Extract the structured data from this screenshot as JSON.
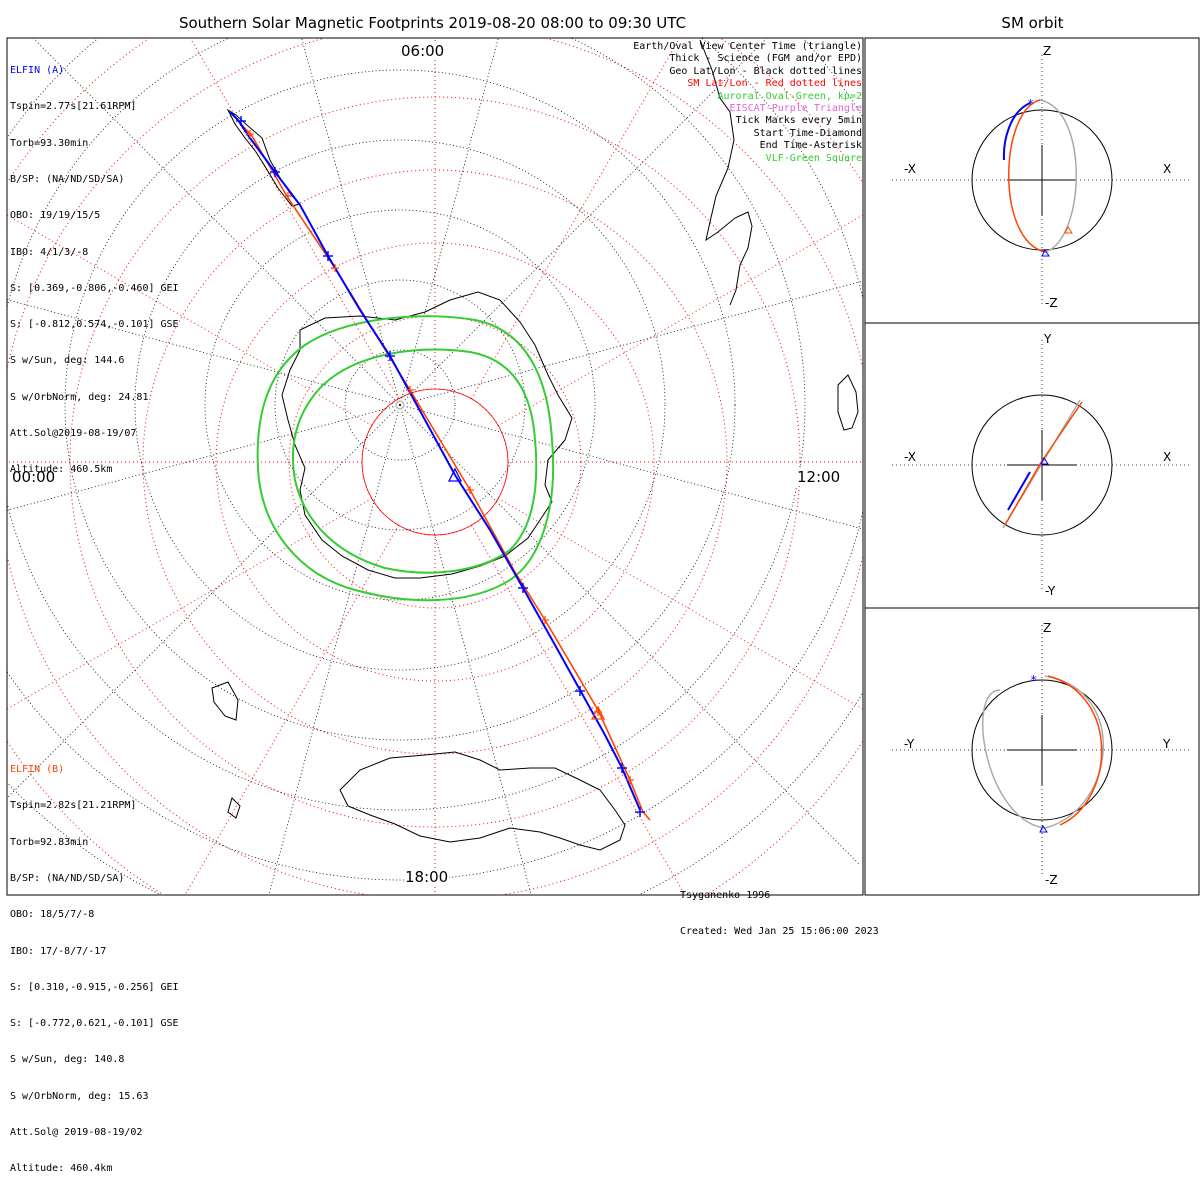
{
  "header": {
    "title": "Southern Solar Magnetic Footprints 2019-08-20 08:00 to 09:30 UTC",
    "sm_title": "SM orbit"
  },
  "map": {
    "mlt_labels": {
      "top": "06:00",
      "left": "00:00",
      "right": "12:00",
      "bottom": "18:00"
    }
  },
  "elfin_a": {
    "name": "ELFIN (A)",
    "lines": [
      "Tspin=2.77s[21.61RPM]",
      "Torb=93.30min",
      "B/SP: (NA/ND/SD/SA)",
      "OBO: 19/19/15/5",
      "IBO: 4/1/3/-8",
      "S: [0.369,-0.806,-0.460] GEI",
      "S: [-0.812,0.574,-0.101] GSE",
      "S w/Sun, deg: 144.6",
      "S w/OrbNorm, deg: 24.81",
      "Att.Sol@2019-08-19/07",
      "Altitude: 460.5km"
    ],
    "color": "#0000ff"
  },
  "elfin_b": {
    "name": "ELFIN (B)",
    "lines": [
      "Tspin=2.82s[21.21RPM]",
      "Torb=92.83min",
      "B/SP: (NA/ND/SD/SA)",
      "OBO: 18/5/7/-8",
      "IBO: 17/-8/7/-17",
      "S: [0.310,-0.915,-0.256] GEI",
      "S: [-0.772,0.621,-0.101] GSE",
      "S w/Sun, deg: 140.8",
      "S w/OrbNorm, deg: 15.63",
      "Att.Sol@ 2019-08-19/02",
      "Altitude: 460.4km"
    ],
    "color": "#ff4500"
  },
  "legend": [
    {
      "text": "Earth/Oval View Center Time (triangle)",
      "color": "#000000"
    },
    {
      "text": "Thick - Science (FGM and/or EPD)",
      "color": "#000000"
    },
    {
      "text": "Geo Lat/Lon - Black dotted lines",
      "color": "#000000"
    },
    {
      "text": "SM Lat/Lon - Red dotted lines",
      "color": "#ff0000"
    },
    {
      "text": "Auroral Oval-Green, kp=2",
      "color": "#33cc33"
    },
    {
      "text": "EISCAT-Purple Triangle",
      "color": "#dd66dd"
    },
    {
      "text": "Tick Marks every 5min",
      "color": "#000000"
    },
    {
      "text": "Start Time-Diamond",
      "color": "#000000"
    },
    {
      "text": "End Time-Asterisk",
      "color": "#000000"
    },
    {
      "text": "VLF-Green Square",
      "color": "#33cc33"
    }
  ],
  "credits": {
    "model": "Tsyganenko-1996",
    "created": "Created: Wed Jan 25 15:06:00 2023"
  },
  "orbit_panels": [
    {
      "name": "xz",
      "top": "Z",
      "bottom": "-Z",
      "left": "-X",
      "right": "X"
    },
    {
      "name": "xy",
      "top": "Y",
      "bottom": "-Y",
      "left": "-X",
      "right": "X"
    },
    {
      "name": "yz",
      "top": "Z",
      "bottom": "-Z",
      "left": "-Y",
      "right": "Y"
    }
  ]
}
